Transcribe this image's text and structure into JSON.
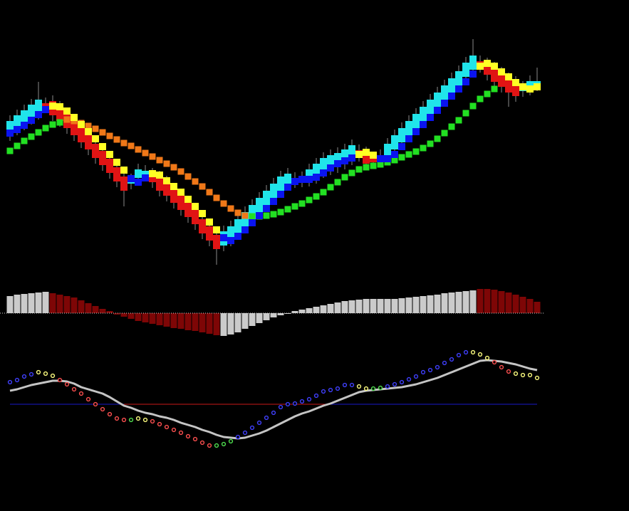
{
  "chart_data": [
    {
      "type": "candlestick",
      "open": [
        210,
        218,
        225,
        233,
        240,
        255,
        258,
        250,
        240,
        230,
        220,
        210,
        198,
        188,
        177,
        165,
        152,
        142,
        150,
        154,
        156,
        152,
        145,
        135,
        125,
        115,
        105,
        92,
        82,
        70,
        55,
        62,
        72,
        82,
        92,
        102,
        112,
        122,
        132,
        140,
        150,
        151,
        146,
        150,
        158,
        162,
        165,
        170,
        176,
        189,
        186,
        178,
        174,
        178,
        190,
        200,
        210,
        220,
        230,
        240,
        250,
        260,
        270,
        280,
        292,
        302,
        314,
        311,
        305,
        298,
        290,
        285,
        272,
        274,
        280
      ],
      "close": [
        230,
        238,
        245,
        253,
        260,
        249,
        238,
        230,
        220,
        210,
        200,
        190,
        178,
        168,
        157,
        145,
        132,
        148,
        162,
        160,
        144,
        132,
        125,
        115,
        105,
        95,
        85,
        72,
        62,
        50,
        75,
        82,
        92,
        102,
        112,
        122,
        132,
        142,
        152,
        156,
        144,
        145,
        162,
        170,
        178,
        182,
        185,
        190,
        196,
        181,
        170,
        172,
        182,
        198,
        210,
        220,
        230,
        240,
        250,
        260,
        270,
        280,
        290,
        300,
        312,
        322,
        306,
        295,
        285,
        278,
        270,
        265,
        278,
        286,
        286
      ],
      "high": [
        238,
        246,
        253,
        261,
        285,
        263,
        266,
        258,
        248,
        238,
        228,
        218,
        206,
        196,
        185,
        173,
        160,
        156,
        170,
        168,
        164,
        160,
        153,
        143,
        133,
        123,
        113,
        100,
        90,
        78,
        83,
        90,
        100,
        110,
        120,
        130,
        140,
        150,
        160,
        164,
        158,
        159,
        170,
        178,
        186,
        190,
        193,
        198,
        204,
        197,
        194,
        186,
        190,
        206,
        218,
        228,
        238,
        248,
        258,
        268,
        278,
        288,
        298,
        308,
        320,
        345,
        322,
        319,
        313,
        306,
        298,
        293,
        286,
        294,
        305
      ],
      "low": [
        202,
        210,
        217,
        225,
        232,
        241,
        230,
        222,
        212,
        202,
        192,
        182,
        170,
        160,
        149,
        137,
        110,
        134,
        142,
        146,
        136,
        124,
        117,
        107,
        97,
        87,
        77,
        64,
        54,
        28,
        47,
        54,
        64,
        74,
        84,
        94,
        104,
        114,
        124,
        132,
        136,
        137,
        138,
        142,
        150,
        154,
        157,
        162,
        168,
        173,
        162,
        164,
        166,
        170,
        182,
        192,
        202,
        212,
        222,
        232,
        242,
        252,
        262,
        272,
        284,
        294,
        298,
        287,
        277,
        270,
        250,
        257,
        264,
        266,
        272
      ],
      "up_color": "#20e4ea",
      "down_color": "#e01414",
      "wick_color": "#8a8a8a",
      "ylim": [
        0,
        400
      ],
      "overlays": [
        {
          "values": [
            188,
            195,
            202,
            208,
            214,
            220,
            225,
            228,
            232,
            230,
            227,
            223,
            219,
            214,
            209,
            204,
            199,
            195,
            190,
            185,
            180,
            175,
            170,
            165,
            159,
            152,
            145,
            138,
            130,
            122,
            114,
            107,
            101,
            97,
            96,
            96,
            97,
            99,
            102,
            106,
            110,
            114,
            119,
            124,
            130,
            137,
            144,
            151,
            157,
            162,
            165,
            167,
            169,
            172,
            175,
            179,
            183,
            187,
            192,
            198,
            205,
            213,
            222,
            231,
            241,
            251,
            261,
            268,
            275,
            null,
            null,
            null,
            null,
            null,
            null
          ],
          "colors": [
            "#22e022",
            "#22e022",
            "#22e022",
            "#22e022",
            "#22e022",
            "#22e022",
            "#22e022",
            "#22e022",
            "#f07818",
            "#f07818",
            "#f07818",
            "#f07818",
            "#f07818",
            "#f07818",
            "#f07818",
            "#f07818",
            "#f07818",
            "#f07818",
            "#f07818",
            "#f07818",
            "#f07818",
            "#f07818",
            "#f07818",
            "#f07818",
            "#f07818",
            "#f07818",
            "#f07818",
            "#f07818",
            "#f07818",
            "#f07818",
            "#f07818",
            "#f07818",
            "#f07818",
            "#f07818",
            "#22e022",
            "#22e022",
            "#22e022",
            "#22e022",
            "#22e022",
            "#22e022",
            "#22e022",
            "#22e022",
            "#22e022",
            "#22e022",
            "#22e022",
            "#22e022",
            "#22e022",
            "#22e022",
            "#22e022",
            "#22e022",
            "#22e022",
            "#22e022",
            "#22e022",
            "#22e022",
            "#22e022",
            "#22e022",
            "#22e022",
            "#22e022",
            "#22e022",
            "#22e022",
            "#22e022",
            "#22e022",
            "#22e022",
            "#22e022",
            "#22e022",
            "#22e022",
            "#22e022",
            "#22e022",
            "#22e022",
            "#22e022",
            "#22e022",
            "#22e022",
            "#22e022",
            "#22e022",
            "#22e022"
          ]
        },
        {
          "values": [
            213,
            218,
            224,
            231,
            239,
            246,
            251,
            250,
            244,
            235,
            225,
            215,
            205,
            194,
            183,
            172,
            161,
            149,
            144,
            150,
            156,
            154,
            146,
            138,
            130,
            120,
            110,
            100,
            88,
            77,
            66,
            62,
            68,
            77,
            87,
            97,
            107,
            117,
            127,
            137,
            145,
            148,
            148,
            151,
            157,
            164,
            170,
            174,
            178,
            183,
            186,
            182,
            177,
            177,
            183,
            194,
            205,
            215,
            225,
            235,
            245,
            255,
            265,
            275,
            285,
            296,
            307,
            311,
            307,
            299,
            292,
            284,
            278,
            275,
            278
          ],
          "colors": [
            "#0a14f0",
            "#0a14f0",
            "#0a14f0",
            "#0a14f0",
            "#0a14f0",
            "#0a14f0",
            "#ffff24",
            "#ffff24",
            "#ffff24",
            "#ffff24",
            "#ffff24",
            "#ffff24",
            "#ffff24",
            "#ffff24",
            "#ffff24",
            "#ffff24",
            "#ffff24",
            "#0a14f0",
            "#0a14f0",
            "#0a14f0",
            "#ffff24",
            "#ffff24",
            "#ffff24",
            "#ffff24",
            "#ffff24",
            "#ffff24",
            "#ffff24",
            "#ffff24",
            "#ffff24",
            "#ffff24",
            "#0a14f0",
            "#0a14f0",
            "#0a14f0",
            "#0a14f0",
            "#0a14f0",
            "#0a14f0",
            "#0a14f0",
            "#0a14f0",
            "#0a14f0",
            "#0a14f0",
            "#0a14f0",
            "#0a14f0",
            "#0a14f0",
            "#0a14f0",
            "#0a14f0",
            "#0a14f0",
            "#0a14f0",
            "#0a14f0",
            "#0a14f0",
            "#ffff24",
            "#ffff24",
            "#ffff24",
            "#0a14f0",
            "#0a14f0",
            "#0a14f0",
            "#0a14f0",
            "#0a14f0",
            "#0a14f0",
            "#0a14f0",
            "#0a14f0",
            "#0a14f0",
            "#0a14f0",
            "#0a14f0",
            "#0a14f0",
            "#0a14f0",
            "#0a14f0",
            "#ffff24",
            "#ffff24",
            "#ffff24",
            "#ffff24",
            "#ffff24",
            "#ffff24",
            "#ffff24",
            "#ffff24",
            "#ffff24"
          ]
        }
      ]
    },
    {
      "type": "histogram",
      "values": [
        24,
        26,
        27,
        28,
        29,
        30,
        28,
        26,
        24,
        22,
        18,
        14,
        10,
        6,
        3,
        -2,
        -5,
        -8,
        -11,
        -13,
        -15,
        -17,
        -19,
        -21,
        -22,
        -24,
        -25,
        -27,
        -29,
        -31,
        -32,
        -30,
        -27,
        -22,
        -18,
        -14,
        -10,
        -6,
        -3,
        -1,
        3,
        5,
        7,
        9,
        11,
        13,
        15,
        17,
        18,
        19,
        20,
        20,
        20,
        20,
        20,
        21,
        22,
        23,
        24,
        25,
        26,
        28,
        29,
        30,
        31,
        32,
        34,
        34,
        33,
        31,
        29,
        26,
        23,
        20,
        16
      ],
      "colors": [
        "#cbcbcb",
        "#cbcbcb",
        "#cbcbcb",
        "#cbcbcb",
        "#cbcbcb",
        "#cbcbcb",
        "#7e0606",
        "#7e0606",
        "#7e0606",
        "#7e0606",
        "#7e0606",
        "#7e0606",
        "#7e0606",
        "#7e0606",
        "#7e0606",
        "#7e0606",
        "#7e0606",
        "#7e0606",
        "#7e0606",
        "#7e0606",
        "#7e0606",
        "#7e0606",
        "#7e0606",
        "#7e0606",
        "#7e0606",
        "#7e0606",
        "#7e0606",
        "#7e0606",
        "#7e0606",
        "#7e0606",
        "#cbcbcb",
        "#cbcbcb",
        "#cbcbcb",
        "#cbcbcb",
        "#cbcbcb",
        "#cbcbcb",
        "#cbcbcb",
        "#cbcbcb",
        "#cbcbcb",
        "#cbcbcb",
        "#cbcbcb",
        "#cbcbcb",
        "#cbcbcb",
        "#cbcbcb",
        "#cbcbcb",
        "#cbcbcb",
        "#cbcbcb",
        "#cbcbcb",
        "#cbcbcb",
        "#cbcbcb",
        "#cbcbcb",
        "#cbcbcb",
        "#cbcbcb",
        "#cbcbcb",
        "#cbcbcb",
        "#cbcbcb",
        "#cbcbcb",
        "#cbcbcb",
        "#cbcbcb",
        "#cbcbcb",
        "#cbcbcb",
        "#cbcbcb",
        "#cbcbcb",
        "#cbcbcb",
        "#cbcbcb",
        "#cbcbcb",
        "#7e0606",
        "#7e0606",
        "#7e0606",
        "#7e0606",
        "#7e0606",
        "#7e0606",
        "#7e0606",
        "#7e0606",
        "#7e0606"
      ],
      "baseline": 0,
      "baseline_color": "#d8d8d8",
      "ylim": [
        -40,
        40
      ]
    },
    {
      "type": "oscillator",
      "line": {
        "values": [
          19,
          21,
          24,
          27,
          29,
          31,
          33,
          33,
          32,
          29,
          24,
          21,
          18,
          15,
          10,
          4,
          -2,
          -5,
          -9,
          -12,
          -14,
          -17,
          -19,
          -22,
          -26,
          -29,
          -32,
          -36,
          -39,
          -43,
          -46,
          -47,
          -48,
          -47,
          -44,
          -41,
          -37,
          -32,
          -27,
          -22,
          -17,
          -13,
          -10,
          -6,
          -2,
          1,
          5,
          9,
          13,
          17,
          19,
          20,
          21,
          22,
          23,
          24,
          26,
          28,
          31,
          34,
          37,
          41,
          45,
          49,
          53,
          57,
          61,
          62,
          61,
          60,
          58,
          56,
          53,
          50,
          48
        ],
        "color": "#c4c4c4"
      },
      "dots": {
        "values": [
          31,
          34,
          39,
          42,
          45,
          43,
          40,
          34,
          28,
          21,
          15,
          7,
          0,
          -7,
          -14,
          -20,
          -22,
          -22,
          -20,
          -22,
          -24,
          -28,
          -32,
          -36,
          -40,
          -45,
          -49,
          -54,
          -58,
          -58,
          -56,
          -52,
          -46,
          -40,
          -33,
          -26,
          -19,
          -12,
          -4,
          0,
          1,
          4,
          7,
          12,
          18,
          20,
          22,
          27,
          27,
          25,
          22,
          22,
          23,
          25,
          28,
          31,
          35,
          39,
          45,
          48,
          52,
          58,
          63,
          69,
          73,
          73,
          70,
          65,
          59,
          52,
          46,
          43,
          41,
          41,
          37
        ],
        "colors": [
          "#4040ff",
          "#4040ff",
          "#4040ff",
          "#4040ff",
          "#ffff80",
          "#ffff80",
          "#ffff80",
          "#ff5050",
          "#ff5050",
          "#ff5050",
          "#ff5050",
          "#ff5050",
          "#ff5050",
          "#ff5050",
          "#ff5050",
          "#ff5050",
          "#ff5050",
          "#50e050",
          "#ffff80",
          "#ffff80",
          "#ff5050",
          "#ff5050",
          "#ff5050",
          "#ff5050",
          "#ff5050",
          "#ff5050",
          "#ff5050",
          "#ff5050",
          "#ff5050",
          "#50e050",
          "#50e050",
          "#50e050",
          "#4040ff",
          "#4040ff",
          "#4040ff",
          "#4040ff",
          "#4040ff",
          "#4040ff",
          "#4040ff",
          "#4040ff",
          "#4040ff",
          "#4040ff",
          "#4040ff",
          "#4040ff",
          "#4040ff",
          "#4040ff",
          "#4040ff",
          "#4040ff",
          "#4040ff",
          "#ffff80",
          "#ffff80",
          "#50e050",
          "#50e050",
          "#4040ff",
          "#4040ff",
          "#4040ff",
          "#4040ff",
          "#4040ff",
          "#4040ff",
          "#4040ff",
          "#4040ff",
          "#4040ff",
          "#4040ff",
          "#4040ff",
          "#4040ff",
          "#ffff80",
          "#ffff80",
          "#ffff80",
          "#ff5050",
          "#ff5050",
          "#ff5050",
          "#ffff80",
          "#ffff80",
          "#ffff80",
          "#ffff80"
        ]
      },
      "level": 0,
      "level_color": "#1818c8",
      "level_below_color": "#c81818",
      "ylim": [
        -90,
        90
      ]
    }
  ]
}
